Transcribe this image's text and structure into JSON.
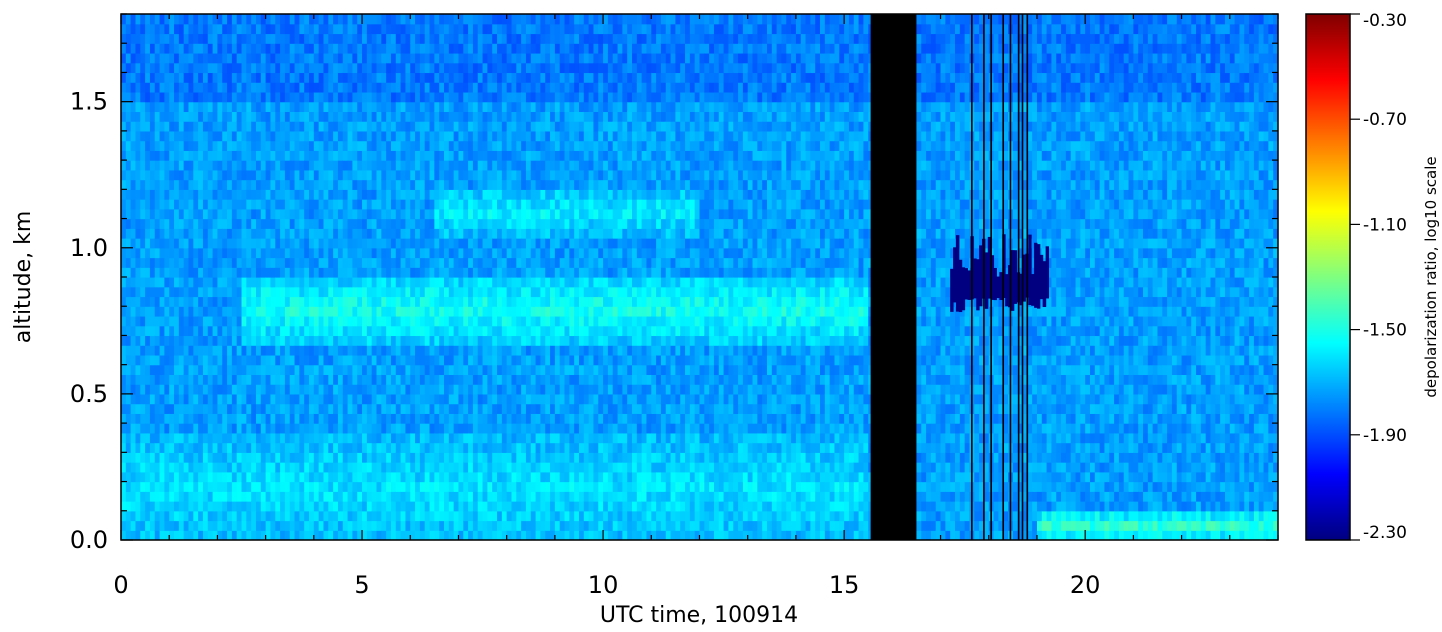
{
  "chart_data": {
    "type": "heatmap",
    "title": "",
    "xlabel": "UTC time, 100914",
    "ylabel": "altitude, km",
    "xlim": [
      0,
      24
    ],
    "ylim": [
      0,
      1.8
    ],
    "x_ticks": [
      "0",
      "5",
      "10",
      "15",
      "20"
    ],
    "x_tick_values": [
      0,
      5,
      10,
      15,
      20
    ],
    "y_ticks": [
      "0.0",
      "0.5",
      "1.0",
      "1.5"
    ],
    "y_tick_values": [
      0.0,
      0.5,
      1.0,
      1.5
    ],
    "colorbar": {
      "label": "depolarization ratio, log10 scale",
      "range": [
        -2.3,
        -0.3
      ],
      "ticks": [
        "-0.30",
        "-0.70",
        "-1.10",
        "-1.50",
        "-1.90",
        "-2.30"
      ],
      "tick_values": [
        -0.3,
        -0.7,
        -1.1,
        -1.5,
        -1.9,
        -2.3
      ],
      "colormap": "jet"
    },
    "background_value": -1.9,
    "no_data_band": {
      "x_start": 15.55,
      "x_end": 16.5,
      "color": "#000000"
    },
    "features": [
      {
        "name": "aerosol layer",
        "x_start": 2.5,
        "x_end": 15.5,
        "y_low": 0.68,
        "y_high": 0.9,
        "value": -1.65
      },
      {
        "name": "upper aerosol layer",
        "x_start": 6.5,
        "x_end": 12.0,
        "y_low": 1.05,
        "y_high": 1.2,
        "value": -1.72
      },
      {
        "name": "near-surface layer",
        "x_start": 0,
        "x_end": 15.5,
        "y_low": 0.0,
        "y_high": 0.35,
        "value": -1.75
      },
      {
        "name": "cloud layer",
        "x_start": 17.2,
        "x_end": 19.2,
        "y_low": 0.78,
        "y_high": 1.05,
        "value": -2.3
      },
      {
        "name": "near-surface layer after gap",
        "x_start": 19.0,
        "x_end": 24,
        "y_low": 0.0,
        "y_high": 0.1,
        "value": -1.6
      }
    ]
  }
}
